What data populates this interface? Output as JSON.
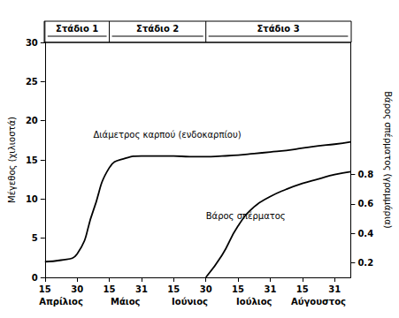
{
  "chart_data": {
    "type": "line",
    "y_label": "Μέγεθος (χιλιοστά)",
    "y2_label": "Βάρος σπέρματος (γραμμάρια)",
    "categories": [
      "15",
      null,
      "30",
      null,
      "15",
      null,
      "31",
      null,
      "15",
      null,
      "30",
      null,
      "15",
      null,
      "31",
      null,
      "15",
      null,
      "31",
      null
    ],
    "months": [
      "Απρίλιος",
      "Μάιος",
      "Ιούνιος",
      "Ιούλιος",
      "Αύγουστος"
    ],
    "series": [
      {
        "name": "Διάμετρος καρπού (ενδοκαρπίου)",
        "color": "#000000",
        "values": [
          2,
          2.2,
          3,
          8.5,
          14,
          15.2,
          15.5,
          15.5,
          15.5,
          15.4,
          15.4,
          15.5,
          15.6,
          15.8,
          16,
          16.2,
          16.5,
          16.8,
          17,
          17.3
        ]
      },
      {
        "name": "Βάρος σπέρματος",
        "color": "#000000",
        "axis": "y2",
        "values": [
          null,
          null,
          null,
          null,
          null,
          null,
          null,
          null,
          null,
          null,
          0.1,
          0.25,
          0.45,
          0.58,
          0.65,
          0.7,
          0.74,
          0.77,
          0.8,
          0.82
        ]
      }
    ],
    "ylim": [
      0,
      30
    ],
    "yticks": [
      0,
      5,
      10,
      15,
      20,
      25,
      30
    ],
    "y2lim": [
      0.1,
      1.7
    ],
    "y2ticks": [
      0.2,
      0.4,
      0.6,
      0.8
    ],
    "stages": [
      {
        "label": "Στάδιο 1",
        "start": 0,
        "end": 4
      },
      {
        "label": "Στάδιο 2",
        "start": 4,
        "end": 10
      },
      {
        "label": "Στάδιο 3",
        "start": 10,
        "end": 19
      }
    ],
    "annotations": [
      {
        "text": "Διάμετρος καρπού (ενδοκαρπίου)",
        "x": 3.3,
        "y": 18.2
      },
      {
        "text": "Βάρος σπέρματος",
        "x": 9.6,
        "y": 0.52,
        "axis": "y2"
      }
    ],
    "grid": false
  }
}
